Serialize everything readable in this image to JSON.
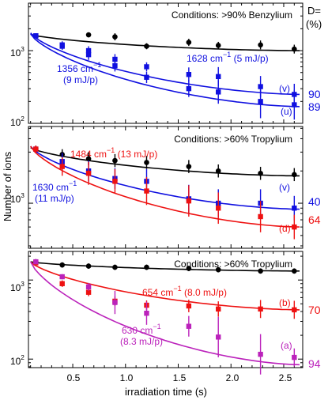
{
  "figure": {
    "ylabel": "Number of ions",
    "xlabel": "irradiation time (s)",
    "d_header_line1": "D=",
    "d_header_line2": "(%)",
    "x_tick_labels": [
      "0.5",
      "1.0",
      "1.5",
      "2.0",
      "2.5"
    ],
    "colors": {
      "black": "#000000",
      "blue": "#1010e0",
      "red": "#ee1111",
      "magenta": "#bb22bb"
    }
  },
  "chart_data": [
    {
      "type": "scatter",
      "panel": "top",
      "annotation": "Conditions: >90% Benzylium",
      "xlim": [
        0.08,
        2.68
      ],
      "ylim_log": [
        100,
        4500
      ],
      "y_scale": "log",
      "y_tick_labels": [
        "10",
        "10"
      ],
      "y_tick_exponents": [
        "3",
        "2"
      ],
      "labels": [
        {
          "id": "l1",
          "text": "1628 cm",
          "sup": "−1",
          "suffix": " (5 mJ/p)",
          "color": "blue"
        },
        {
          "id": "l2",
          "text": "1356 cm",
          "sup": "−1",
          "suffix": "",
          "color": "blue"
        },
        {
          "id": "l3",
          "text": "(9 mJ/p)",
          "sup": "",
          "suffix": "",
          "color": "blue"
        },
        {
          "id": "l4",
          "text": "(v)",
          "sup": "",
          "suffix": "",
          "color": "blue"
        },
        {
          "id": "l5",
          "text": "(u)",
          "sup": "",
          "suffix": "",
          "color": "blue"
        }
      ],
      "right_values": [
        {
          "text": "90",
          "color": "blue"
        },
        {
          "text": "89",
          "color": "blue"
        }
      ],
      "series": [
        {
          "color": "black",
          "x": [
            0.15,
            0.65,
            0.9,
            1.2,
            1.6,
            1.88,
            2.28,
            2.6
          ],
          "y": [
            1600,
            1650,
            1550,
            1150,
            1300,
            1180,
            1200,
            1050
          ],
          "err": [
            1.08,
            1.08,
            1.12,
            1.1,
            1.12,
            1.12,
            1.15,
            1.15
          ],
          "fit": [
            0.1,
            2.65,
            1680,
            1000
          ]
        },
        {
          "color": "blue",
          "x": [
            0.15,
            0.4,
            0.65,
            0.9,
            1.2,
            1.6,
            1.88,
            2.28,
            2.6
          ],
          "y": [
            1600,
            1200,
            1000,
            760,
            600,
            470,
            440,
            320,
            250
          ],
          "err": [
            1.08,
            1.12,
            1.15,
            1.18,
            1.15,
            1.25,
            1.35,
            1.4,
            1.4
          ],
          "fit": [
            0.1,
            2.65,
            1750,
            250
          ]
        },
        {
          "color": "blue",
          "x": [
            0.15,
            0.4,
            0.65,
            0.9,
            1.2,
            1.6,
            1.88,
            2.28,
            2.6
          ],
          "y": [
            1600,
            1150,
            880,
            620,
            430,
            300,
            270,
            200,
            180
          ],
          "err": [
            1.08,
            1.12,
            1.18,
            1.2,
            1.2,
            1.3,
            1.45,
            1.7,
            1.6
          ],
          "fit": [
            0.1,
            2.65,
            1700,
            170
          ]
        }
      ]
    },
    {
      "type": "scatter",
      "panel": "middle",
      "annotation": "Conditions: >60% Tropylium",
      "xlim": [
        0.08,
        2.68
      ],
      "ylim_log": [
        380,
        5200
      ],
      "y_scale": "log",
      "y_tick_labels": [
        "10"
      ],
      "y_tick_exponents": [
        "3"
      ],
      "labels": [
        {
          "id": "l1",
          "text": "1484 cm",
          "sup": "−1",
          "suffix": " (13 mJ/p)",
          "color": "red"
        },
        {
          "id": "l2",
          "text": "1630 cm",
          "sup": "−1",
          "suffix": "",
          "color": "blue"
        },
        {
          "id": "l3",
          "text": "(11 mJ/p)",
          "sup": "",
          "suffix": "",
          "color": "blue"
        },
        {
          "id": "l4",
          "text": "(v)",
          "sup": "",
          "suffix": "",
          "color": "blue"
        },
        {
          "id": "l5",
          "text": "(d)",
          "sup": "",
          "suffix": "",
          "color": "red"
        }
      ],
      "right_values": [
        {
          "text": "40",
          "color": "blue"
        },
        {
          "text": "64",
          "color": "red"
        }
      ],
      "series": [
        {
          "color": "black",
          "x": [
            0.15,
            0.4,
            0.65,
            0.9,
            1.2,
            1.6,
            1.88,
            2.28,
            2.6
          ],
          "y": [
            3200,
            2850,
            2600,
            2500,
            2400,
            2200,
            2000,
            1900,
            1850
          ],
          "err": [
            1.08,
            1.12,
            1.15,
            1.15,
            1.15,
            1.15,
            1.15,
            1.15,
            1.15
          ],
          "fit": [
            0.1,
            2.65,
            3300,
            1800
          ]
        },
        {
          "color": "blue",
          "x": [
            0.15,
            0.4,
            0.65,
            0.9,
            1.2,
            1.6,
            1.88,
            2.28,
            2.6
          ],
          "y": [
            3200,
            2450,
            2000,
            1700,
            1600,
            1100,
            1000,
            1000,
            900
          ],
          "err": [
            1.08,
            1.2,
            1.25,
            1.25,
            1.3,
            1.35,
            1.35,
            1.35,
            1.3
          ],
          "fit": [
            0.1,
            2.65,
            3400,
            880
          ]
        },
        {
          "color": "red",
          "x": [
            0.15,
            0.4,
            0.65,
            0.9,
            1.2,
            1.6,
            1.88,
            2.28,
            2.6
          ],
          "y": [
            3200,
            2200,
            1900,
            1600,
            1300,
            1050,
            900,
            750,
            600
          ],
          "err": [
            1.08,
            1.22,
            1.28,
            1.3,
            1.35,
            1.4,
            1.4,
            1.4,
            1.3
          ],
          "fit": [
            0.1,
            2.65,
            3400,
            600
          ]
        }
      ]
    },
    {
      "type": "scatter",
      "panel": "bottom",
      "annotation": "Conditions: >60% Tropylium",
      "xlim": [
        0.08,
        2.68
      ],
      "ylim_log": [
        78,
        2300
      ],
      "y_scale": "log",
      "y_tick_labels": [
        "10",
        "10"
      ],
      "y_tick_exponents": [
        "3",
        "2"
      ],
      "labels": [
        {
          "id": "l1",
          "text": "654 cm",
          "sup": "−1",
          "suffix": " (8.0 mJ/p)",
          "color": "red"
        },
        {
          "id": "l2",
          "text": "630 cm",
          "sup": "−1",
          "suffix": "",
          "color": "magenta"
        },
        {
          "id": "l3",
          "text": "(8.3 mJ/p)",
          "sup": "",
          "suffix": "",
          "color": "magenta"
        },
        {
          "id": "l4",
          "text": "(b)",
          "sup": "",
          "suffix": "",
          "color": "red"
        },
        {
          "id": "l5",
          "text": "(a)",
          "sup": "",
          "suffix": "",
          "color": "magenta"
        }
      ],
      "right_values": [
        {
          "text": "70",
          "color": "red"
        },
        {
          "text": "94",
          "color": "magenta"
        }
      ],
      "series": [
        {
          "color": "black",
          "x": [
            0.15,
            0.4,
            0.65,
            0.9,
            1.2,
            1.6,
            1.88,
            2.28,
            2.6
          ],
          "y": [
            1700,
            1550,
            1500,
            1450,
            1450,
            1400,
            1350,
            1300,
            1300
          ],
          "err": [
            1.08,
            1.08,
            1.08,
            1.08,
            1.08,
            1.08,
            1.08,
            1.08,
            1.08
          ],
          "fit": [
            0.1,
            2.65,
            1700,
            1300
          ]
        },
        {
          "color": "red",
          "x": [
            0.15,
            0.4,
            0.65,
            0.9,
            1.2,
            1.6,
            1.88,
            2.28,
            2.6
          ],
          "y": [
            1650,
            900,
            700,
            540,
            480,
            470,
            430,
            430,
            420
          ],
          "err": [
            1.08,
            1.1,
            1.12,
            1.15,
            1.15,
            1.2,
            1.25,
            1.3,
            1.3
          ],
          "fit": [
            0.1,
            2.65,
            1700,
            420
          ]
        },
        {
          "color": "magenta",
          "x": [
            0.15,
            0.4,
            0.65,
            0.9,
            1.2,
            1.6,
            1.88,
            2.28,
            2.6
          ],
          "y": [
            1700,
            1100,
            820,
            520,
            380,
            260,
            190,
            115,
            105
          ],
          "err": [
            1.08,
            1.08,
            1.12,
            1.4,
            1.4,
            1.35,
            1.8,
            1.8,
            1.3
          ],
          "fit": [
            0.1,
            2.65,
            1700,
            85
          ]
        }
      ]
    }
  ]
}
